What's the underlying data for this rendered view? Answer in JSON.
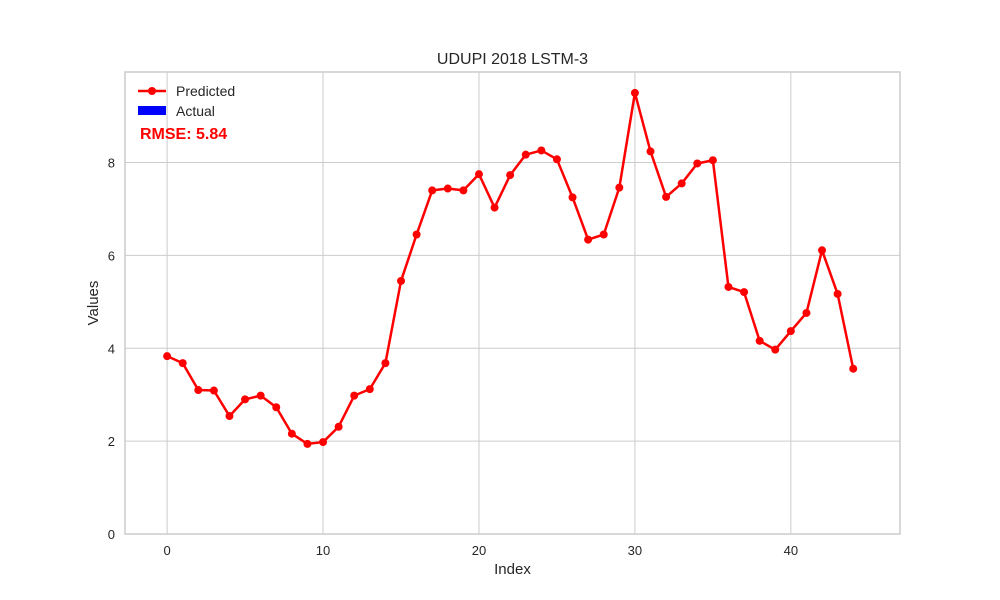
{
  "chart_data": {
    "type": "line",
    "title": "UDUPI 2018 LSTM-3",
    "xlabel": "Index",
    "ylabel": "Values",
    "xlim": [
      -2.7,
      47.0
    ],
    "ylim": [
      0,
      9.95
    ],
    "xticks": [
      0,
      10,
      20,
      30,
      40
    ],
    "yticks": [
      0,
      2,
      4,
      6,
      8
    ],
    "grid": true,
    "legend_position": "top-left",
    "series": [
      {
        "name": "Predicted",
        "color": "#ff0000",
        "marker": "circle",
        "x": [
          0,
          1,
          2,
          3,
          4,
          5,
          6,
          7,
          8,
          9,
          10,
          11,
          12,
          13,
          14,
          15,
          16,
          17,
          18,
          19,
          20,
          21,
          22,
          23,
          24,
          25,
          26,
          27,
          28,
          29,
          30,
          31,
          32,
          33,
          34,
          35,
          36,
          37,
          38,
          39,
          40,
          41,
          42,
          43,
          44
        ],
        "values": [
          3.83,
          3.68,
          3.1,
          3.09,
          2.54,
          2.9,
          2.98,
          2.73,
          2.16,
          1.94,
          1.98,
          2.31,
          2.98,
          3.12,
          3.68,
          5.45,
          6.45,
          7.4,
          7.44,
          7.4,
          7.75,
          7.03,
          7.73,
          8.17,
          8.26,
          8.07,
          7.25,
          6.34,
          6.45,
          7.46,
          9.5,
          8.24,
          7.26,
          7.55,
          7.98,
          8.05,
          5.32,
          5.21,
          4.16,
          3.97,
          4.37,
          4.76,
          6.11,
          5.17,
          3.56
        ]
      },
      {
        "name": "Actual",
        "color": "#0000ff",
        "values": []
      }
    ],
    "annotation": {
      "text": "RMSE: 5.84",
      "color": "#ff0000"
    }
  }
}
